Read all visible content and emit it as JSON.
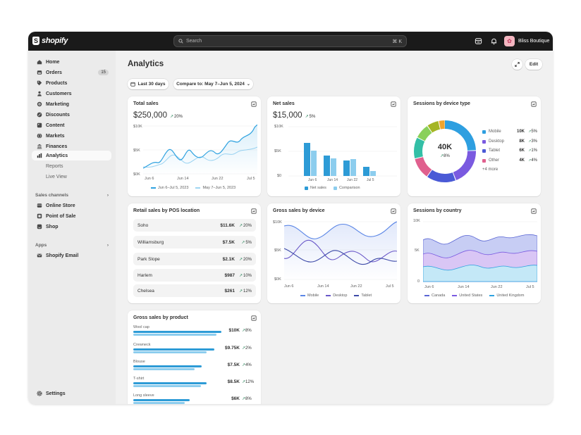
{
  "brand": {
    "name": "shopify"
  },
  "search": {
    "placeholder": "Search",
    "shortcut": "⌘ K"
  },
  "store": {
    "name": "Bliss Boutique",
    "avatar": "👚"
  },
  "nav": {
    "items": [
      {
        "label": "Home",
        "icon": "home-icon"
      },
      {
        "label": "Orders",
        "icon": "orders-icon",
        "badge": "15"
      },
      {
        "label": "Products",
        "icon": "tag-icon"
      },
      {
        "label": "Customers",
        "icon": "person-icon"
      },
      {
        "label": "Marketing",
        "icon": "target-icon"
      },
      {
        "label": "Discounts",
        "icon": "discount-icon"
      },
      {
        "label": "Content",
        "icon": "content-icon"
      },
      {
        "label": "Markets",
        "icon": "globe-icon"
      },
      {
        "label": "Finances",
        "icon": "bank-icon"
      },
      {
        "label": "Analytics",
        "icon": "chart-icon"
      },
      {
        "label": "Reports"
      },
      {
        "label": "Live View"
      }
    ],
    "sales_channels_label": "Sales channels",
    "channels": [
      {
        "label": "Online Store"
      },
      {
        "label": "Point of Sale"
      },
      {
        "label": "Shop"
      }
    ],
    "apps_label": "Apps",
    "apps": [
      {
        "label": "Shopify Email"
      }
    ],
    "settings": "Settings"
  },
  "page": {
    "title": "Analytics",
    "range_btn": "Last 30 days",
    "compare_btn": "Compare to: May 7–Jun 5, 2024",
    "edit_btn": "Edit"
  },
  "cards": {
    "total_sales": {
      "title": "Total sales",
      "value": "$250,000",
      "pct": "20%",
      "y_ticks": [
        "$10K",
        "$5K",
        "$0K"
      ],
      "x_ticks": [
        "Jun 6",
        "Jun 14",
        "Jun 22",
        "Jul 5"
      ],
      "legend": [
        "Jun 6–Jul 5, 2023",
        "May 7–Jun 5, 2023"
      ]
    },
    "net_sales": {
      "title": "Net sales",
      "value": "$15,000",
      "pct": "5%",
      "y_ticks": [
        "$10K",
        "$5K",
        "$0"
      ],
      "x_ticks": [
        "Jun 6",
        "Jun 14",
        "Jun 22",
        "Jul 5"
      ],
      "legend": [
        "Net sales",
        "Comparison"
      ]
    },
    "sessions_device": {
      "title": "Sessions by device type",
      "center_value": "40K",
      "center_pct": "8%",
      "rows": [
        {
          "name": "Mobile",
          "value": "10K",
          "pct": "5%",
          "color": "#2e9fe0"
        },
        {
          "name": "Desktop",
          "value": "8K",
          "pct": "3%",
          "color": "#7a5ae0"
        },
        {
          "name": "Tablet",
          "value": "6K",
          "pct": "1%",
          "color": "#4a5ad6"
        },
        {
          "name": "Other",
          "value": "4K",
          "pct": "4%",
          "color": "#e0608e"
        }
      ],
      "more": "+4 more"
    },
    "retail_sales": {
      "title": "Retail sales by POS location",
      "rows": [
        {
          "name": "Soho",
          "value": "$11.6K",
          "pct": "20%"
        },
        {
          "name": "Williamsburg",
          "value": "$7.5K",
          "pct": "5%"
        },
        {
          "name": "Park Slope",
          "value": "$2.1K",
          "pct": "20%"
        },
        {
          "name": "Harlem",
          "value": "$987",
          "pct": "10%"
        },
        {
          "name": "Chelsea",
          "value": "$261",
          "pct": "12%"
        }
      ]
    },
    "gross_device": {
      "title": "Gross sales by device",
      "y_ticks": [
        "$10K",
        "$5K",
        "$0K"
      ],
      "x_ticks": [
        "Jun 6",
        "Jun 14",
        "Jun 22",
        "Jul 5"
      ],
      "legend": [
        "Mobile",
        "Desktop",
        "Tablet"
      ]
    },
    "sessions_country": {
      "title": "Sessions by country",
      "y_ticks": [
        "10K",
        "5K",
        "0"
      ],
      "x_ticks": [
        "Jun 6",
        "Jun 14",
        "Jun 22",
        "Jul 5"
      ],
      "legend": [
        "Canada",
        "United States",
        "United Kingdom"
      ]
    },
    "gross_product": {
      "title": "Gross sales by product",
      "rows": [
        {
          "name": "Wool cap",
          "value": "$10K",
          "pct": "8%",
          "current": 0.72,
          "compare": 0.68
        },
        {
          "name": "Crewneck",
          "value": "$9.75K",
          "pct": "2%",
          "current": 0.66,
          "compare": 0.6
        },
        {
          "name": "Blouse",
          "value": "$7.5K",
          "pct": "4%",
          "current": 0.56,
          "compare": 0.5
        },
        {
          "name": "T-shirt",
          "value": "$8.5K",
          "pct": "12%",
          "current": 0.6,
          "compare": 0.55
        },
        {
          "name": "Long sleeve",
          "value": "$6K",
          "pct": "8%",
          "current": 0.46,
          "compare": 0.42
        }
      ]
    }
  }
}
